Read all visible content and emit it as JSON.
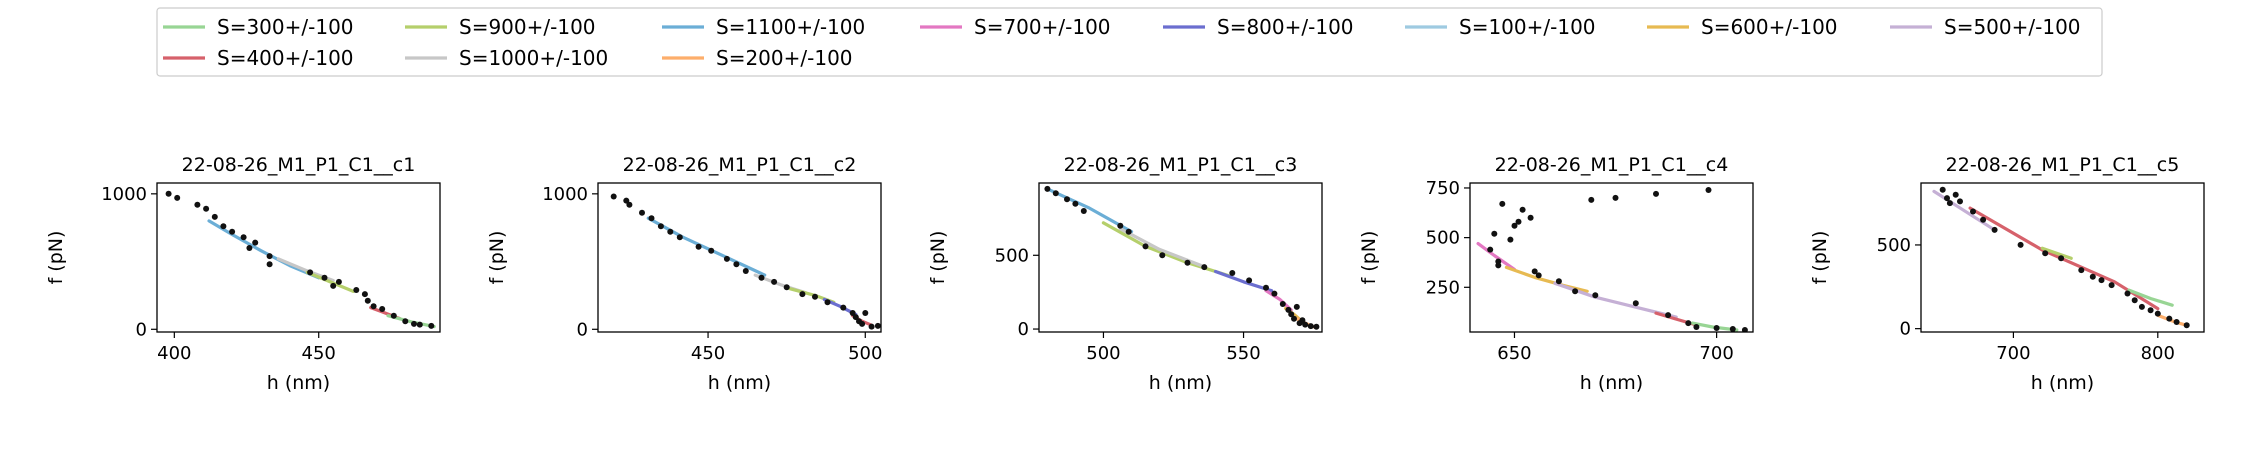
{
  "legend": {
    "location": "top-center",
    "columns": 8,
    "entries": [
      {
        "label": "S=300+/-100",
        "color": "#98d594"
      },
      {
        "label": "S=900+/-100",
        "color": "#b5cf6b"
      },
      {
        "label": "S=1100+/-100",
        "color": "#6baed6"
      },
      {
        "label": "S=700+/-100",
        "color": "#e377c2"
      },
      {
        "label": "S=800+/-100",
        "color": "#6b6ecf"
      },
      {
        "label": "S=100+/-100",
        "color": "#9ecae1"
      },
      {
        "label": "S=600+/-100",
        "color": "#e7ba52"
      },
      {
        "label": "S=500+/-100",
        "color": "#c5b0d5"
      },
      {
        "label": "S=400+/-100",
        "color": "#d6616b"
      },
      {
        "label": "S=1000+/-100",
        "color": "#c7c7c7"
      },
      {
        "label": "S=200+/-100",
        "color": "#fdae6b"
      }
    ]
  },
  "chart_data": [
    {
      "type": "scatter",
      "title": "22-08-26_M1_P1_C1__c1",
      "xlabel": "h (nm)",
      "ylabel": "f (pN)",
      "xlim": [
        394,
        492
      ],
      "ylim": [
        -20,
        1080
      ],
      "xticks": [
        400,
        450
      ],
      "yticks": [
        0,
        1000
      ],
      "points": [
        [
          398,
          1000
        ],
        [
          401,
          970
        ],
        [
          408,
          920
        ],
        [
          411,
          890
        ],
        [
          414,
          830
        ],
        [
          417,
          760
        ],
        [
          420,
          720
        ],
        [
          424,
          680
        ],
        [
          426,
          600
        ],
        [
          428,
          640
        ],
        [
          433,
          540
        ],
        [
          433,
          480
        ],
        [
          447,
          420
        ],
        [
          452,
          380
        ],
        [
          455,
          320
        ],
        [
          457,
          350
        ],
        [
          463,
          290
        ],
        [
          466,
          260
        ],
        [
          467,
          210
        ],
        [
          469,
          170
        ],
        [
          472,
          150
        ],
        [
          476,
          100
        ],
        [
          480,
          60
        ],
        [
          483,
          40
        ],
        [
          485,
          35
        ],
        [
          489,
          25
        ]
      ],
      "series": [
        {
          "name": "S=1100+/-100",
          "x": [
            412,
            420,
            430,
            440,
            450
          ],
          "y": [
            800,
            700,
            580,
            470,
            380
          ]
        },
        {
          "name": "S=1000+/-100",
          "x": [
            436,
            445,
            455
          ],
          "y": [
            520,
            440,
            360
          ]
        },
        {
          "name": "S=900+/-100",
          "x": [
            446,
            454,
            462
          ],
          "y": [
            420,
            350,
            280
          ]
        },
        {
          "name": "S=400+/-100",
          "x": [
            468,
            473,
            478
          ],
          "y": [
            160,
            120,
            80
          ]
        },
        {
          "name": "S=300+/-100",
          "x": [
            474,
            482,
            490
          ],
          "y": [
            100,
            55,
            20
          ]
        }
      ]
    },
    {
      "type": "scatter",
      "title": "22-08-26_M1_P1_C1__c2",
      "xlabel": "h (nm)",
      "ylabel": "f (pN)",
      "xlim": [
        415,
        505
      ],
      "ylim": [
        -20,
        1080
      ],
      "xticks": [
        450,
        500
      ],
      "yticks": [
        0,
        1000
      ],
      "points": [
        [
          420,
          980
        ],
        [
          424,
          950
        ],
        [
          425,
          920
        ],
        [
          429,
          860
        ],
        [
          432,
          820
        ],
        [
          435,
          760
        ],
        [
          438,
          720
        ],
        [
          441,
          680
        ],
        [
          447,
          610
        ],
        [
          451,
          580
        ],
        [
          456,
          520
        ],
        [
          459,
          480
        ],
        [
          462,
          430
        ],
        [
          467,
          380
        ],
        [
          471,
          350
        ],
        [
          475,
          310
        ],
        [
          480,
          260
        ],
        [
          484,
          240
        ],
        [
          488,
          200
        ],
        [
          493,
          160
        ],
        [
          496,
          120
        ],
        [
          497,
          90
        ],
        [
          498,
          60
        ],
        [
          499,
          40
        ],
        [
          500,
          120
        ],
        [
          502,
          20
        ],
        [
          504,
          25
        ]
      ],
      "series": [
        {
          "name": "S=1100+/-100",
          "x": [
            431,
            442,
            455,
            468
          ],
          "y": [
            820,
            680,
            540,
            400
          ]
        },
        {
          "name": "S=1000+/-100",
          "x": [
            465,
            473,
            481
          ],
          "y": [
            400,
            330,
            270
          ]
        },
        {
          "name": "S=900+/-100",
          "x": [
            476,
            484,
            490
          ],
          "y": [
            300,
            250,
            200
          ]
        },
        {
          "name": "S=800+/-100",
          "x": [
            487,
            492,
            497
          ],
          "y": [
            220,
            170,
            110
          ]
        },
        {
          "name": "S=400+/-100",
          "x": [
            496,
            499,
            502
          ],
          "y": [
            100,
            60,
            30
          ]
        }
      ]
    },
    {
      "type": "scatter",
      "title": "22-08-26_M1_P1_C1__c3",
      "xlabel": "h (nm)",
      "ylabel": "f (pN)",
      "xlim": [
        477,
        578
      ],
      "ylim": [
        -20,
        990
      ],
      "xticks": [
        500,
        550
      ],
      "yticks": [
        0,
        500
      ],
      "points": [
        [
          480,
          950
        ],
        [
          483,
          920
        ],
        [
          487,
          880
        ],
        [
          490,
          850
        ],
        [
          493,
          800
        ],
        [
          506,
          700
        ],
        [
          509,
          660
        ],
        [
          515,
          560
        ],
        [
          521,
          500
        ],
        [
          530,
          450
        ],
        [
          536,
          420
        ],
        [
          546,
          380
        ],
        [
          552,
          330
        ],
        [
          558,
          280
        ],
        [
          561,
          240
        ],
        [
          564,
          170
        ],
        [
          566,
          130
        ],
        [
          567,
          100
        ],
        [
          568,
          70
        ],
        [
          569,
          150
        ],
        [
          570,
          40
        ],
        [
          571,
          60
        ],
        [
          572,
          30
        ],
        [
          574,
          20
        ],
        [
          576,
          15
        ]
      ],
      "series": [
        {
          "name": "S=1100+/-100",
          "x": [
            480,
            495,
            510
          ],
          "y": [
            950,
            820,
            660
          ]
        },
        {
          "name": "S=900+/-100",
          "x": [
            500,
            515,
            530,
            545
          ],
          "y": [
            720,
            560,
            450,
            360
          ]
        },
        {
          "name": "S=1000+/-100",
          "x": [
            506,
            520,
            535
          ],
          "y": [
            680,
            540,
            430
          ]
        },
        {
          "name": "S=800+/-100",
          "x": [
            540,
            550,
            560
          ],
          "y": [
            390,
            320,
            260
          ]
        },
        {
          "name": "S=700+/-100",
          "x": [
            558,
            563,
            567
          ],
          "y": [
            260,
            200,
            130
          ]
        },
        {
          "name": "S=600+/-100",
          "x": [
            565,
            568,
            571
          ],
          "y": [
            140,
            100,
            50
          ]
        },
        {
          "name": "S=200+/-100",
          "x": [
            569,
            572,
            575
          ],
          "y": [
            70,
            40,
            15
          ]
        }
      ]
    },
    {
      "type": "scatter",
      "title": "22-08-26_M1_P1_C1__c4",
      "xlabel": "h (nm)",
      "ylabel": "f (pN)",
      "xlim": [
        639,
        709
      ],
      "ylim": [
        25,
        775
      ],
      "xticks": [
        650,
        700
      ],
      "yticks": [
        250,
        500,
        750
      ],
      "points": [
        [
          644,
          440
        ],
        [
          645,
          520
        ],
        [
          646,
          360
        ],
        [
          646,
          380
        ],
        [
          647,
          670
        ],
        [
          649,
          490
        ],
        [
          650,
          560
        ],
        [
          651,
          580
        ],
        [
          652,
          640
        ],
        [
          654,
          600
        ],
        [
          655,
          330
        ],
        [
          656,
          310
        ],
        [
          661,
          280
        ],
        [
          665,
          230
        ],
        [
          669,
          690
        ],
        [
          670,
          210
        ],
        [
          675,
          700
        ],
        [
          680,
          170
        ],
        [
          685,
          720
        ],
        [
          688,
          110
        ],
        [
          693,
          70
        ],
        [
          695,
          50
        ],
        [
          698,
          740
        ],
        [
          700,
          45
        ],
        [
          704,
          40
        ],
        [
          707,
          35
        ]
      ],
      "series": [
        {
          "name": "S=700+/-100",
          "x": [
            641,
            645,
            650
          ],
          "y": [
            470,
            410,
            340
          ]
        },
        {
          "name": "S=600+/-100",
          "x": [
            648,
            655,
            662,
            668
          ],
          "y": [
            350,
            300,
            260,
            230
          ]
        },
        {
          "name": "S=500+/-100",
          "x": [
            660,
            670,
            680,
            690
          ],
          "y": [
            270,
            200,
            150,
            100
          ]
        },
        {
          "name": "S=400+/-100",
          "x": [
            685,
            690,
            695
          ],
          "y": [
            120,
            90,
            60
          ]
        },
        {
          "name": "S=300+/-100",
          "x": [
            694,
            699,
            705
          ],
          "y": [
            70,
            50,
            35
          ]
        }
      ]
    },
    {
      "type": "scatter",
      "title": "22-08-26_M1_P1_C1__c5",
      "xlabel": "h (nm)",
      "ylabel": "f (pN)",
      "xlim": [
        636,
        832
      ],
      "ylim": [
        -20,
        870
      ],
      "xticks": [
        700,
        800
      ],
      "yticks": [
        0,
        500
      ],
      "points": [
        [
          651,
          830
        ],
        [
          654,
          780
        ],
        [
          656,
          750
        ],
        [
          660,
          800
        ],
        [
          663,
          760
        ],
        [
          672,
          700
        ],
        [
          679,
          650
        ],
        [
          687,
          590
        ],
        [
          705,
          500
        ],
        [
          722,
          450
        ],
        [
          733,
          420
        ],
        [
          747,
          350
        ],
        [
          755,
          310
        ],
        [
          761,
          290
        ],
        [
          768,
          260
        ],
        [
          779,
          210
        ],
        [
          784,
          170
        ],
        [
          789,
          130
        ],
        [
          795,
          110
        ],
        [
          800,
          90
        ],
        [
          808,
          60
        ],
        [
          813,
          40
        ],
        [
          820,
          20
        ]
      ],
      "series": [
        {
          "name": "S=500+/-100",
          "x": [
            645,
            665,
            685
          ],
          "y": [
            820,
            710,
            600
          ]
        },
        {
          "name": "S=400+/-100",
          "x": [
            670,
            720,
            770,
            800
          ],
          "y": [
            720,
            470,
            280,
            120
          ]
        },
        {
          "name": "S=900+/-100",
          "x": [
            720,
            740
          ],
          "y": [
            480,
            420
          ]
        },
        {
          "name": "S=300+/-100",
          "x": [
            780,
            795,
            810
          ],
          "y": [
            230,
            180,
            140
          ]
        },
        {
          "name": "S=200+/-100",
          "x": [
            800,
            812,
            820
          ],
          "y": [
            80,
            40,
            20
          ]
        }
      ]
    }
  ]
}
